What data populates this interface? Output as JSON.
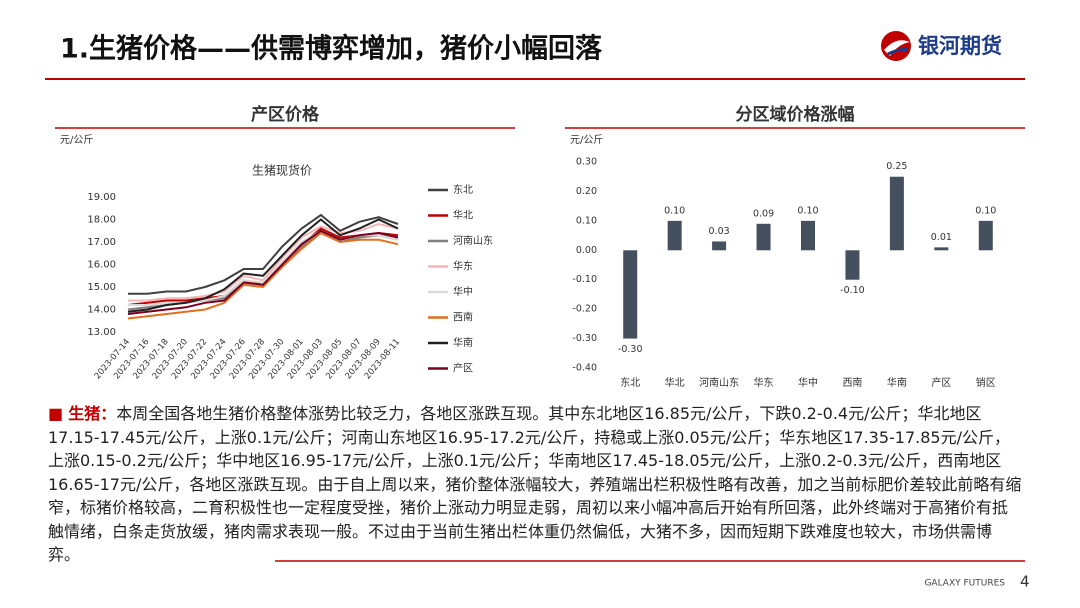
{
  "header": {
    "title": "1.生猪价格——供需博弈增加，猪价小幅回落",
    "logo": "银河期货"
  },
  "sections": [
    "产区价格",
    "分区域价格涨幅"
  ],
  "chart_data": [
    {
      "type": "line",
      "title": "生猪现货价",
      "unit": "元/公斤",
      "categories": [
        "2023-07-14",
        "2023-07-16",
        "2023-07-18",
        "2023-07-20",
        "2023-07-22",
        "2023-07-24",
        "2023-07-26",
        "2023-07-28",
        "2023-07-30",
        "2023-08-01",
        "2023-08-03",
        "2023-08-05",
        "2023-08-07",
        "2023-08-09",
        "2023-08-11"
      ],
      "ylim": [
        13,
        19
      ],
      "yticks": [
        {
          "value": 13,
          "label": "13.00"
        },
        {
          "value": 14,
          "label": "14.00"
        },
        {
          "value": 15,
          "label": "15.00"
        },
        {
          "value": 16,
          "label": "16.00"
        },
        {
          "value": 17,
          "label": "17.00"
        },
        {
          "value": 18,
          "label": "18.00"
        },
        {
          "value": 19,
          "label": "19.00"
        }
      ],
      "series": [
        {
          "name": "东北",
          "color": "#404040",
          "values": [
            14.7,
            14.7,
            14.8,
            14.8,
            15.0,
            15.3,
            15.8,
            15.8,
            16.8,
            17.6,
            18.2,
            17.5,
            17.9,
            18.1,
            17.8
          ]
        },
        {
          "name": "华北",
          "color": "#c00000",
          "values": [
            14.2,
            14.3,
            14.4,
            14.4,
            14.5,
            14.6,
            15.3,
            15.1,
            16.1,
            16.9,
            17.6,
            17.2,
            17.3,
            17.4,
            17.3
          ]
        },
        {
          "name": "河南山东",
          "color": "#808080",
          "values": [
            14.0,
            14.1,
            14.2,
            14.3,
            14.4,
            14.5,
            15.2,
            15.1,
            15.9,
            16.8,
            17.4,
            17.0,
            17.2,
            17.3,
            17.1
          ]
        },
        {
          "name": "华东",
          "color": "#f4b6b6",
          "values": [
            14.4,
            14.4,
            14.5,
            14.5,
            14.6,
            14.8,
            15.5,
            15.3,
            16.3,
            17.2,
            17.7,
            17.4,
            17.5,
            17.8,
            17.6
          ]
        },
        {
          "name": "华中",
          "color": "#d9d9d9",
          "values": [
            14.2,
            14.2,
            14.3,
            14.3,
            14.4,
            14.6,
            15.3,
            15.2,
            16.1,
            17.0,
            17.5,
            17.1,
            17.3,
            17.3,
            17.1
          ]
        },
        {
          "name": "西南",
          "color": "#e07020",
          "values": [
            13.6,
            13.7,
            13.8,
            13.9,
            14.0,
            14.3,
            15.1,
            15.0,
            15.9,
            16.7,
            17.4,
            17.0,
            17.1,
            17.1,
            16.9
          ]
        },
        {
          "name": "华南",
          "color": "#202020",
          "values": [
            13.9,
            14.0,
            14.2,
            14.3,
            14.5,
            14.9,
            15.6,
            15.5,
            16.4,
            17.3,
            18.0,
            17.3,
            17.6,
            18.0,
            17.6
          ]
        },
        {
          "name": "产区",
          "color": "#7a0020",
          "values": [
            13.8,
            13.9,
            14.0,
            14.1,
            14.3,
            14.4,
            15.2,
            15.1,
            16.0,
            16.9,
            17.5,
            17.1,
            17.3,
            17.4,
            17.2
          ]
        }
      ]
    },
    {
      "type": "bar",
      "unit": "元/公斤",
      "categories": [
        "东北",
        "华北",
        "河南山东",
        "华东",
        "华中",
        "西南",
        "华南",
        "产区",
        "销区"
      ],
      "values": [
        -0.3,
        0.1,
        0.03,
        0.09,
        0.1,
        -0.1,
        0.25,
        0.01,
        0.1
      ],
      "value_labels": [
        "-0.30",
        "0.10",
        "0.03",
        "0.09",
        "0.10",
        "-0.10",
        "0.25",
        "0.01",
        "0.10"
      ],
      "color": "#44505e",
      "ylim": [
        -0.4,
        0.3
      ],
      "yticks": [
        {
          "value": -0.4,
          "label": "-0.40"
        },
        {
          "value": -0.3,
          "label": "-0.30"
        },
        {
          "value": -0.2,
          "label": "-0.20"
        },
        {
          "value": -0.1,
          "label": "-0.10"
        },
        {
          "value": 0,
          "label": "0.00"
        },
        {
          "value": 0.1,
          "label": "0.10"
        },
        {
          "value": 0.2,
          "label": "0.20"
        },
        {
          "value": 0.3,
          "label": "0.30"
        }
      ]
    }
  ],
  "body": {
    "label": "生猪：",
    "text": "本周全国各地生猪价格整体涨势比较乏力，各地区涨跌互现。其中东北地区16.85元/公斤，下跌0.2-0.4元/公斤；华北地区17.15-17.45元/公斤，上涨0.1元/公斤；河南山东地区16.95-17.2元/公斤，持稳或上涨0.05元/公斤；华东地区17.35-17.85元/公斤，上涨0.15-0.2元/公斤；华中地区16.95-17元/公斤，上涨0.1元/公斤；华南地区17.45-18.05元/公斤，上涨0.2-0.3元/公斤，西南地区16.65-17元/公斤，各地区涨跌互现。由于自上周以来，猪价整体涨幅较大，养殖端出栏积极性略有改善，加之当前标肥价差较此前略有缩窄，标猪价格较高，二育积极性也一定程度受挫，猪价上涨动力明显走弱，周初以来小幅冲高后开始有所回落，此外终端对于高猪价有抵触情绪，白条走货放缓，猪肉需求表现一般。不过由于当前生猪出栏体重仍然偏低，大猪不多，因而短期下跌难度也较大，市场供需博弈。"
  },
  "footer": {
    "brand": "GALAXY FUTURES",
    "page": 4
  }
}
